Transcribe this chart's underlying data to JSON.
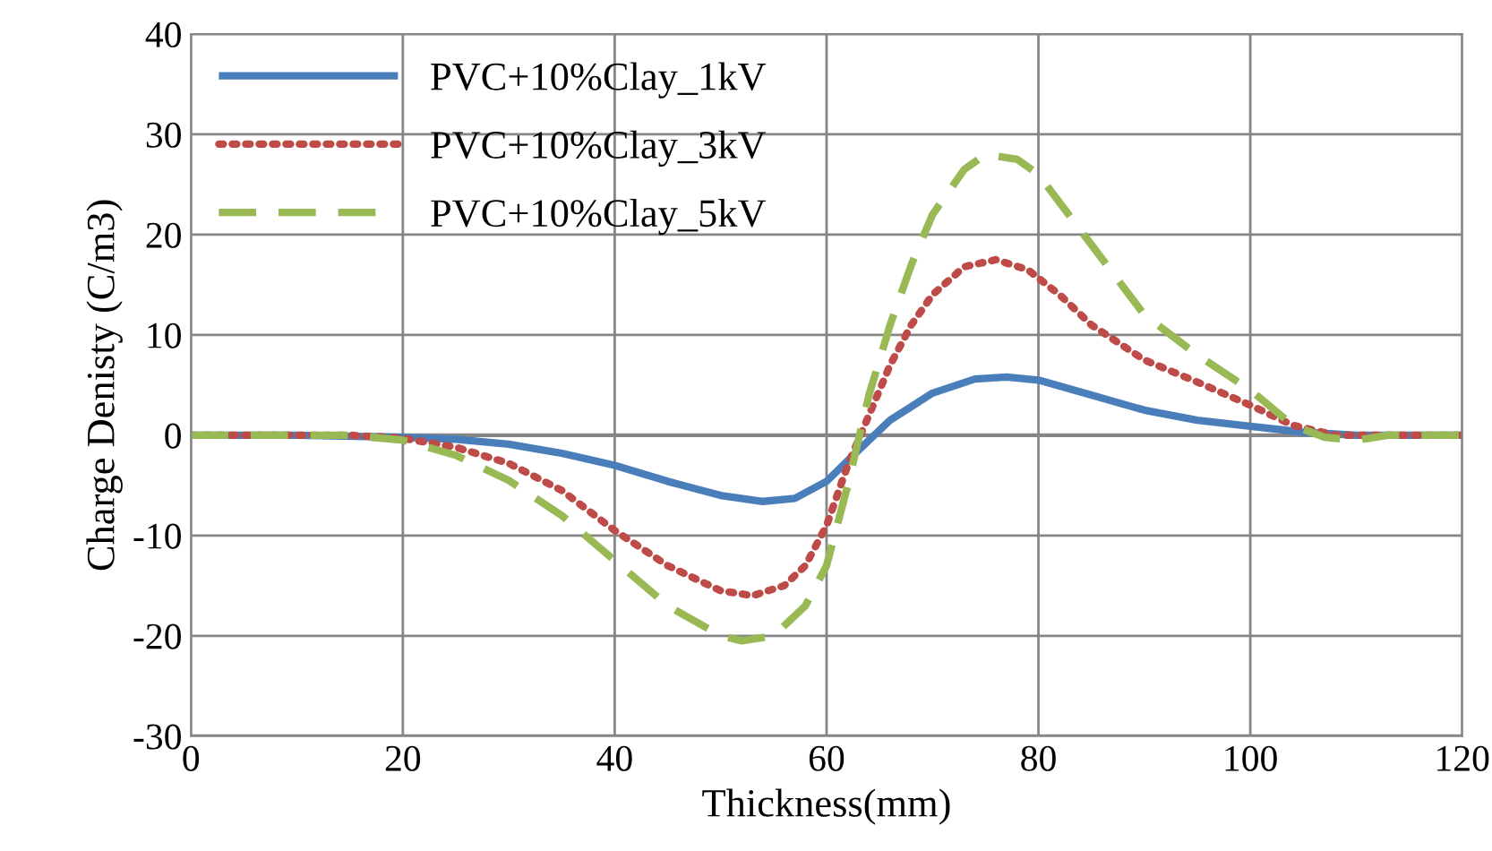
{
  "chart_data": {
    "type": "line",
    "xlabel": "Thickness(mm)",
    "ylabel": "Charge Denisty (C/m3)",
    "xlim": [
      0,
      120
    ],
    "xticks": [
      0,
      20,
      40,
      60,
      80,
      100,
      120
    ],
    "ylim": [
      -30,
      40
    ],
    "yticks": [
      -30,
      -20,
      -10,
      0,
      10,
      20,
      30,
      40
    ],
    "grid": true,
    "legend": "top left",
    "series": [
      {
        "name": "PVC+10%Clay_1kV",
        "color": "#4a7ebb",
        "line_style": "solid",
        "x": [
          0,
          10,
          20,
          25,
          30,
          35,
          40,
          45,
          50,
          54,
          57,
          60,
          63,
          66,
          70,
          74,
          77,
          80,
          85,
          90,
          95,
          100,
          105,
          110,
          120
        ],
        "values": [
          0,
          0,
          -0.2,
          -0.4,
          -0.9,
          -1.8,
          -3.0,
          -4.6,
          -6.0,
          -6.6,
          -6.3,
          -4.6,
          -1.5,
          1.5,
          4.2,
          5.6,
          5.8,
          5.5,
          4.0,
          2.5,
          1.5,
          0.9,
          0.3,
          0,
          0
        ]
      },
      {
        "name": "PVC+10%Clay_3kV",
        "color": "#be4b48",
        "line_style": "dotted",
        "x": [
          0,
          15,
          20,
          25,
          30,
          35,
          40,
          45,
          50,
          53,
          56,
          58,
          60,
          62,
          64,
          66,
          68,
          70,
          73,
          76,
          79,
          82,
          85,
          90,
          95,
          100,
          104,
          108,
          120
        ],
        "values": [
          0,
          0,
          -0.3,
          -1.2,
          -2.8,
          -5.5,
          -9.5,
          -13,
          -15.5,
          -16,
          -15,
          -13,
          -9,
          -3,
          2,
          7,
          11,
          14,
          16.8,
          17.5,
          16.5,
          14,
          11,
          7.5,
          5.3,
          3,
          1,
          0,
          0
        ]
      },
      {
        "name": "PVC+10%Clay_5kV",
        "color": "#98b954",
        "line_style": "dashed",
        "x": [
          0,
          15,
          20,
          25,
          30,
          35,
          40,
          45,
          50,
          52,
          55,
          58,
          60,
          62,
          64,
          66,
          68,
          70,
          73,
          75,
          78,
          80,
          85,
          90,
          95,
          100,
          104,
          107,
          110,
          113,
          120
        ],
        "values": [
          0,
          0,
          -0.5,
          -2,
          -4.5,
          -8,
          -12.5,
          -17,
          -20,
          -20.5,
          -20,
          -17,
          -13,
          -5,
          4,
          11,
          17,
          22,
          26.5,
          28,
          27.5,
          26,
          19,
          12,
          8,
          4.5,
          1,
          -0.2,
          -0.5,
          0,
          0
        ]
      }
    ]
  }
}
